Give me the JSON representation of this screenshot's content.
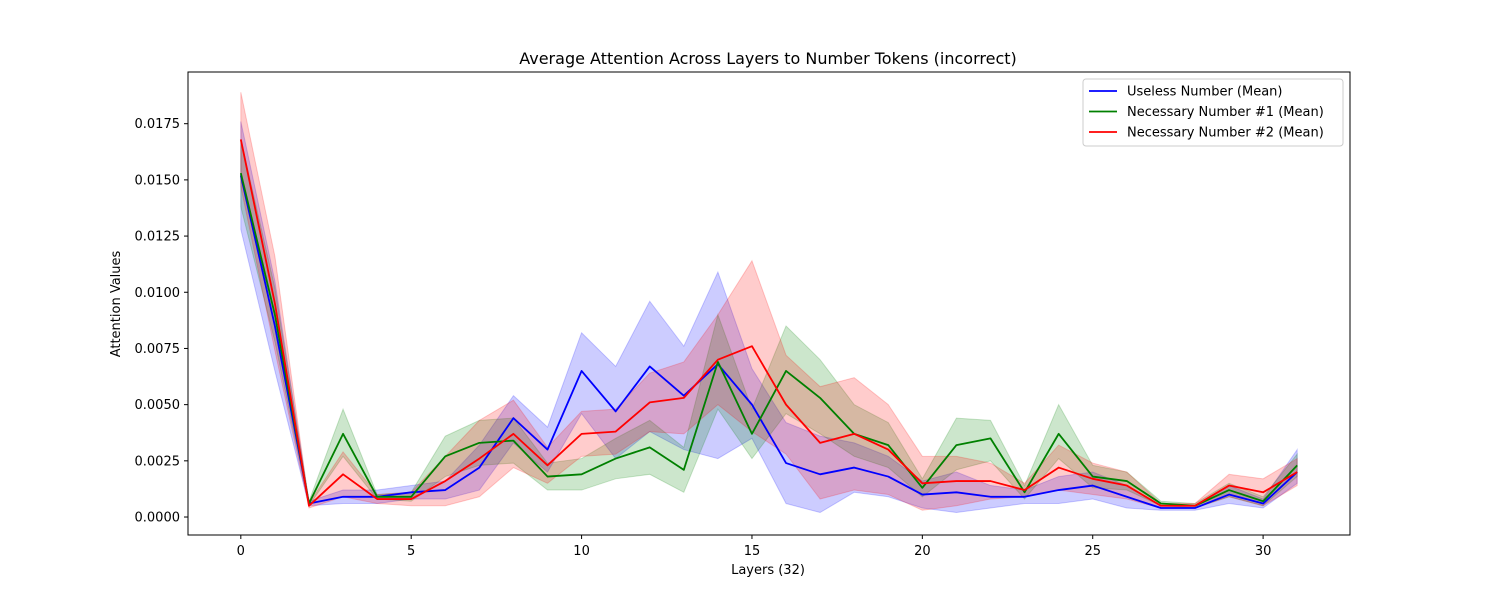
{
  "chart_data": {
    "type": "line",
    "title": "Average Attention Across Layers to Number Tokens (incorrect)",
    "xlabel": "Layers (32)",
    "ylabel": "Attention Values",
    "xlim": [
      -1.55,
      32.55
    ],
    "ylim": [
      -0.0008,
      0.0198
    ],
    "xticks": [
      0,
      5,
      10,
      15,
      20,
      25,
      30
    ],
    "xtick_labels": [
      "0",
      "5",
      "10",
      "15",
      "20",
      "25",
      "30"
    ],
    "yticks": [
      0,
      0.0025,
      0.005,
      0.0075,
      0.01,
      0.0125,
      0.015,
      0.0175
    ],
    "ytick_labels": [
      "0.0000",
      "0.0025",
      "0.0050",
      "0.0075",
      "0.0100",
      "0.0125",
      "0.0150",
      "0.0175"
    ],
    "grid": false,
    "legend_position": "top-right",
    "x": [
      0,
      1,
      2,
      3,
      4,
      5,
      6,
      7,
      8,
      9,
      10,
      11,
      12,
      13,
      14,
      15,
      16,
      17,
      18,
      19,
      20,
      21,
      22,
      23,
      24,
      25,
      26,
      27,
      28,
      29,
      30,
      31
    ],
    "series": [
      {
        "name": "Useless Number (Mean)",
        "color": "#0000ff",
        "values": [
          0.0152,
          0.0085,
          0.0006,
          0.0009,
          0.0009,
          0.0011,
          0.0012,
          0.0022,
          0.0044,
          0.003,
          0.0065,
          0.0047,
          0.0067,
          0.0054,
          0.0068,
          0.005,
          0.0024,
          0.0019,
          0.0022,
          0.0018,
          0.001,
          0.0011,
          0.0009,
          0.0009,
          0.0012,
          0.0014,
          0.0009,
          0.0004,
          0.0004,
          0.001,
          0.0006,
          0.002
        ],
        "lower": [
          0.0128,
          0.0065,
          0.0005,
          0.0006,
          0.0006,
          0.0008,
          0.0008,
          0.0012,
          0.0033,
          0.002,
          0.0046,
          0.0026,
          0.0038,
          0.003,
          0.0026,
          0.0035,
          0.0006,
          0.0002,
          0.0011,
          0.0009,
          0.0004,
          0.0002,
          0.0004,
          0.0006,
          0.0006,
          0.0008,
          0.0004,
          0.0003,
          0.0003,
          0.0006,
          0.0004,
          0.0015
        ],
        "upper": [
          0.0176,
          0.0105,
          0.0007,
          0.0012,
          0.0012,
          0.0014,
          0.0016,
          0.0032,
          0.0054,
          0.004,
          0.0082,
          0.0067,
          0.0096,
          0.0076,
          0.0109,
          0.0066,
          0.0042,
          0.0036,
          0.0033,
          0.0027,
          0.0016,
          0.002,
          0.0014,
          0.0012,
          0.0018,
          0.002,
          0.0014,
          0.0005,
          0.0005,
          0.0014,
          0.0008,
          0.003
        ]
      },
      {
        "name": "Necessary Number #1 (Mean)",
        "color": "#008000",
        "values": [
          0.0153,
          0.009,
          0.0006,
          0.0037,
          0.0009,
          0.0009,
          0.0027,
          0.0033,
          0.0034,
          0.0018,
          0.0019,
          0.0026,
          0.0031,
          0.0021,
          0.0069,
          0.0037,
          0.0065,
          0.0053,
          0.0037,
          0.0032,
          0.0013,
          0.0032,
          0.0035,
          0.0011,
          0.0037,
          0.0018,
          0.0016,
          0.0006,
          0.0005,
          0.0012,
          0.0007,
          0.0023
        ],
        "lower": [
          0.0138,
          0.0078,
          0.0005,
          0.0027,
          0.0008,
          0.0007,
          0.0018,
          0.0023,
          0.0024,
          0.0012,
          0.0012,
          0.0017,
          0.0019,
          0.0011,
          0.0048,
          0.0026,
          0.0046,
          0.0037,
          0.0027,
          0.0022,
          0.0009,
          0.0021,
          0.0025,
          0.0008,
          0.0026,
          0.0013,
          0.0012,
          0.0005,
          0.0004,
          0.0009,
          0.0005,
          0.0018
        ],
        "upper": [
          0.0168,
          0.0102,
          0.0007,
          0.0048,
          0.001,
          0.0011,
          0.0036,
          0.0043,
          0.0044,
          0.0024,
          0.0026,
          0.0035,
          0.0043,
          0.0031,
          0.009,
          0.0048,
          0.0085,
          0.007,
          0.005,
          0.0042,
          0.0017,
          0.0044,
          0.0043,
          0.0014,
          0.005,
          0.0023,
          0.002,
          0.0007,
          0.0006,
          0.0015,
          0.0009,
          0.0028
        ]
      },
      {
        "name": "Necessary Number #2 (Mean)",
        "color": "#ff0000",
        "values": [
          0.0168,
          0.0095,
          0.0005,
          0.0019,
          0.0008,
          0.0008,
          0.0016,
          0.0026,
          0.0037,
          0.0023,
          0.0037,
          0.0038,
          0.0051,
          0.0053,
          0.007,
          0.0076,
          0.005,
          0.0033,
          0.0037,
          0.003,
          0.0015,
          0.0016,
          0.0016,
          0.0012,
          0.0022,
          0.0017,
          0.0014,
          0.0005,
          0.0005,
          0.0014,
          0.0011,
          0.002
        ],
        "lower": [
          0.0147,
          0.0074,
          0.0004,
          0.0009,
          0.0006,
          0.0005,
          0.0005,
          0.0009,
          0.0022,
          0.0015,
          0.0027,
          0.0028,
          0.0038,
          0.0037,
          0.005,
          0.0038,
          0.0028,
          0.0008,
          0.0012,
          0.001,
          0.0003,
          0.0005,
          0.0008,
          0.0009,
          0.0012,
          0.001,
          0.0008,
          0.0004,
          0.0004,
          0.0009,
          0.0005,
          0.0014
        ],
        "upper": [
          0.0189,
          0.0116,
          0.0006,
          0.0029,
          0.001,
          0.0011,
          0.0027,
          0.0043,
          0.0052,
          0.0031,
          0.0047,
          0.0048,
          0.0064,
          0.0069,
          0.009,
          0.0114,
          0.0072,
          0.0058,
          0.0062,
          0.005,
          0.0027,
          0.0027,
          0.0024,
          0.0015,
          0.0032,
          0.0024,
          0.002,
          0.0006,
          0.0006,
          0.0019,
          0.0017,
          0.0026
        ]
      }
    ]
  }
}
